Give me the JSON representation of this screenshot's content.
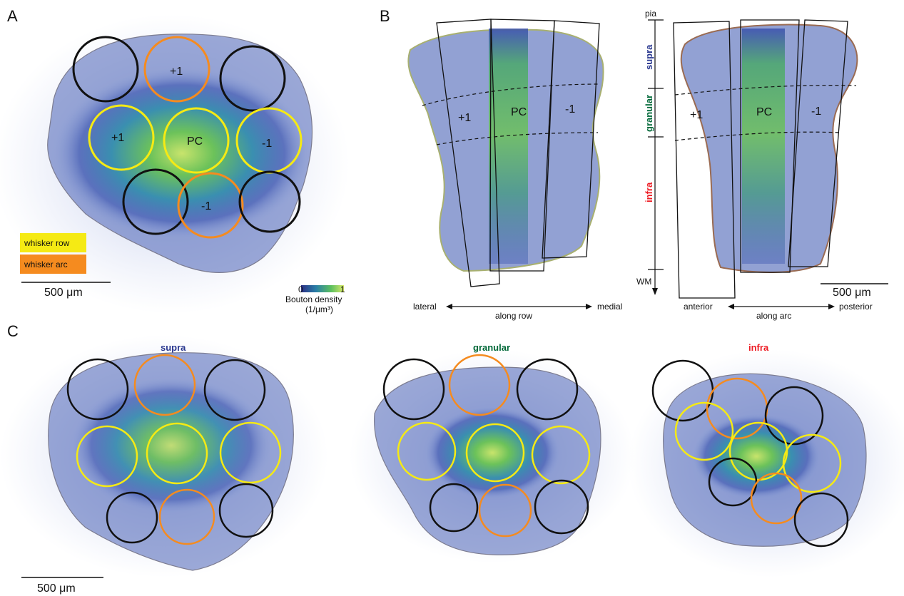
{
  "panels": {
    "a": "A",
    "b": "B",
    "c": "C"
  },
  "legend": {
    "row_label": "whisker row",
    "arc_label": "whisker arc",
    "row_color": "#f5ea14",
    "arc_color": "#f58b1f"
  },
  "columns": {
    "pc": "PC",
    "plus": "+1",
    "minus": "-1"
  },
  "scale_bar": "500 μm",
  "colorbar": {
    "min": "0",
    "max": "1",
    "title": "Bouton density",
    "unit": "(1/μm³)"
  },
  "layers": {
    "pia": "pia",
    "supra": "supra",
    "granular": "granular",
    "infra": "infra",
    "wm": "WM"
  },
  "layer_colors": {
    "supra": "#2b3990",
    "granular": "#006838",
    "infra": "#ed1c24"
  },
  "axes": {
    "lateral": "lateral",
    "along_row": "along row",
    "medial": "medial",
    "anterior": "anterior",
    "along_arc": "along arc",
    "posterior": "posterior"
  },
  "ring_colors": {
    "black": "#111111"
  }
}
